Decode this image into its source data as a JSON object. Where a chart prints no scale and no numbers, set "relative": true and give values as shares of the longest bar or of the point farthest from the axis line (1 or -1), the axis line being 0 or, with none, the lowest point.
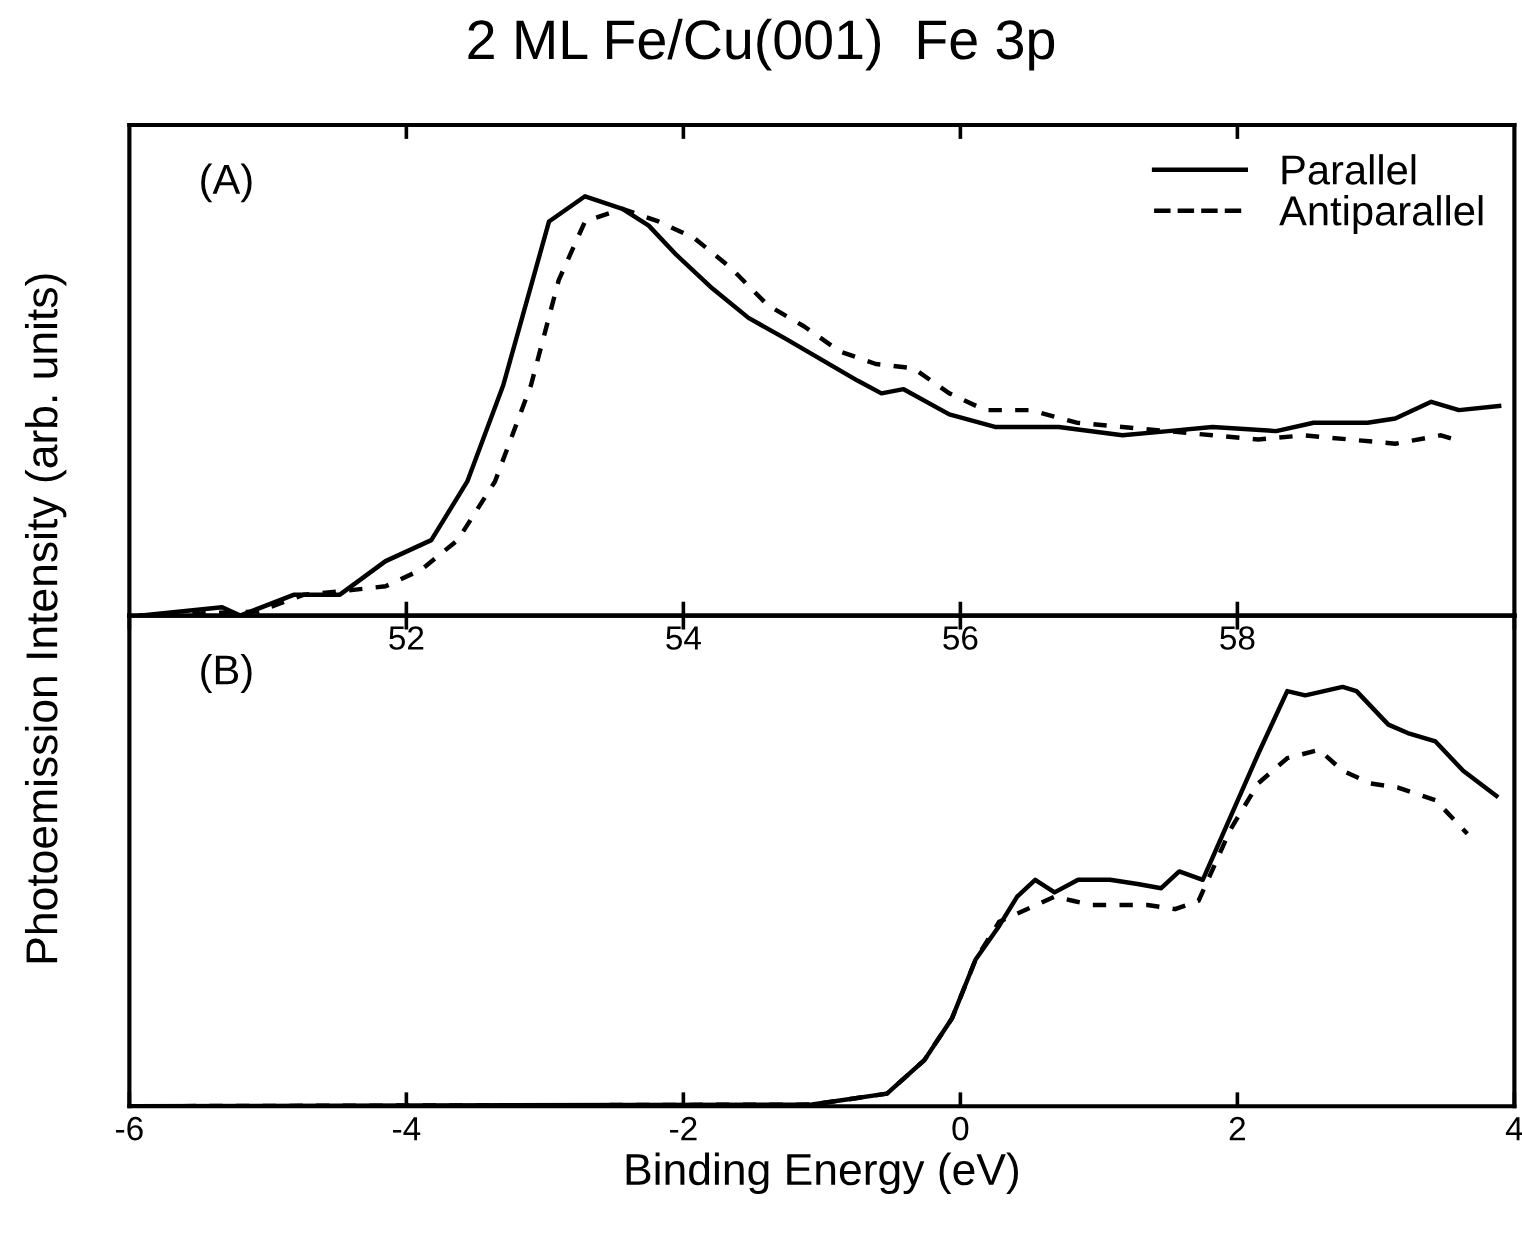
{
  "chart_data": [
    {
      "type": "line",
      "title": "2 ML Fe/Cu(001)  Fe 3p",
      "ylabel": "Photoemission Intensity (arb. units)",
      "relative": true,
      "xlim": [
        50,
        60
      ],
      "xticks": [
        52,
        54,
        56,
        58
      ],
      "legend": "top right",
      "grid": false,
      "annotations": [
        "(A)"
      ],
      "series": [
        {
          "name": "Parallel",
          "color": "#000000",
          "line_style": "solid",
          "x": [
            50.07,
            50.67,
            50.8,
            51.19,
            51.52,
            51.85,
            52.18,
            52.44,
            52.7,
            53.03,
            53.29,
            53.56,
            53.75,
            53.95,
            54.21,
            54.47,
            54.74,
            55.0,
            55.26,
            55.43,
            55.59,
            55.92,
            56.25,
            56.71,
            57.17,
            57.5,
            57.82,
            58.28,
            58.55,
            58.94,
            59.14,
            59.4,
            59.6,
            59.89
          ],
          "values": [
            0,
            0.02,
            0,
            0.05,
            0.05,
            0.13,
            0.18,
            0.32,
            0.55,
            0.94,
            1,
            0.97,
            0.93,
            0.86,
            0.78,
            0.71,
            0.66,
            0.61,
            0.56,
            0.53,
            0.54,
            0.48,
            0.45,
            0.45,
            0.43,
            0.44,
            0.45,
            0.44,
            0.46,
            0.46,
            0.47,
            0.51,
            0.49,
            0.5
          ]
        },
        {
          "name": "Antiparallel",
          "color": "#000000",
          "line_style": "dashed",
          "x": [
            50.07,
            50.93,
            51.26,
            51.58,
            51.85,
            52.11,
            52.37,
            52.64,
            52.9,
            53.1,
            53.29,
            53.56,
            53.82,
            54.08,
            54.34,
            54.61,
            54.87,
            55.13,
            55.39,
            55.66,
            55.92,
            56.18,
            56.51,
            56.84,
            57.17,
            57.5,
            57.82,
            58.15,
            58.48,
            58.81,
            59.14,
            59.47,
            59.57
          ],
          "values": [
            0,
            0.01,
            0.05,
            0.06,
            0.07,
            0.11,
            0.18,
            0.32,
            0.55,
            0.8,
            0.94,
            0.97,
            0.94,
            0.9,
            0.83,
            0.74,
            0.69,
            0.63,
            0.6,
            0.59,
            0.53,
            0.49,
            0.49,
            0.46,
            0.45,
            0.44,
            0.43,
            0.42,
            0.43,
            0.42,
            0.41,
            0.43,
            0.42
          ]
        }
      ]
    },
    {
      "type": "line",
      "xlabel": "Binding Energy (eV)",
      "relative": true,
      "xlim": [
        -6,
        4
      ],
      "xticks": [
        {
          "value": -6,
          "label": "-6"
        },
        {
          "value": -4,
          "label": "-4"
        },
        {
          "value": -2,
          "label": "-2"
        },
        0,
        2,
        4
      ],
      "grid": false,
      "annotations": [
        "(B)"
      ],
      "series": [
        {
          "color": "#000000",
          "line_style": "solid",
          "x": [
            -6,
            -1.07,
            -0.53,
            -0.26,
            -0.06,
            0.11,
            0.28,
            0.41,
            0.54,
            0.68,
            0.85,
            1.08,
            1.28,
            1.45,
            1.58,
            1.75,
            1.95,
            2.15,
            2.36,
            2.49,
            2.76,
            2.86,
            3.09,
            3.23,
            3.43,
            3.63,
            3.87
          ],
          "values": [
            0,
            0.004,
            0.03,
            0.11,
            0.21,
            0.35,
            0.43,
            0.5,
            0.54,
            0.51,
            0.54,
            0.54,
            0.53,
            0.52,
            0.56,
            0.54,
            0.69,
            0.84,
            0.99,
            0.98,
            1,
            0.99,
            0.91,
            0.89,
            0.87,
            0.8,
            0.74
          ]
        },
        {
          "color": "#000000",
          "line_style": "dashed",
          "x": [
            -6,
            -1.07,
            -0.53,
            -0.26,
            -0.06,
            0.11,
            0.28,
            0.48,
            0.68,
            0.81,
            0.95,
            1.08,
            1.35,
            1.55,
            1.72,
            1.95,
            2.15,
            2.36,
            2.59,
            2.76,
            2.96,
            3.16,
            3.43,
            3.66
          ],
          "values": [
            0,
            0.004,
            0.03,
            0.11,
            0.21,
            0.35,
            0.44,
            0.47,
            0.5,
            0.49,
            0.48,
            0.48,
            0.48,
            0.47,
            0.49,
            0.66,
            0.77,
            0.83,
            0.85,
            0.8,
            0.77,
            0.76,
            0.73,
            0.65
          ]
        }
      ]
    }
  ]
}
